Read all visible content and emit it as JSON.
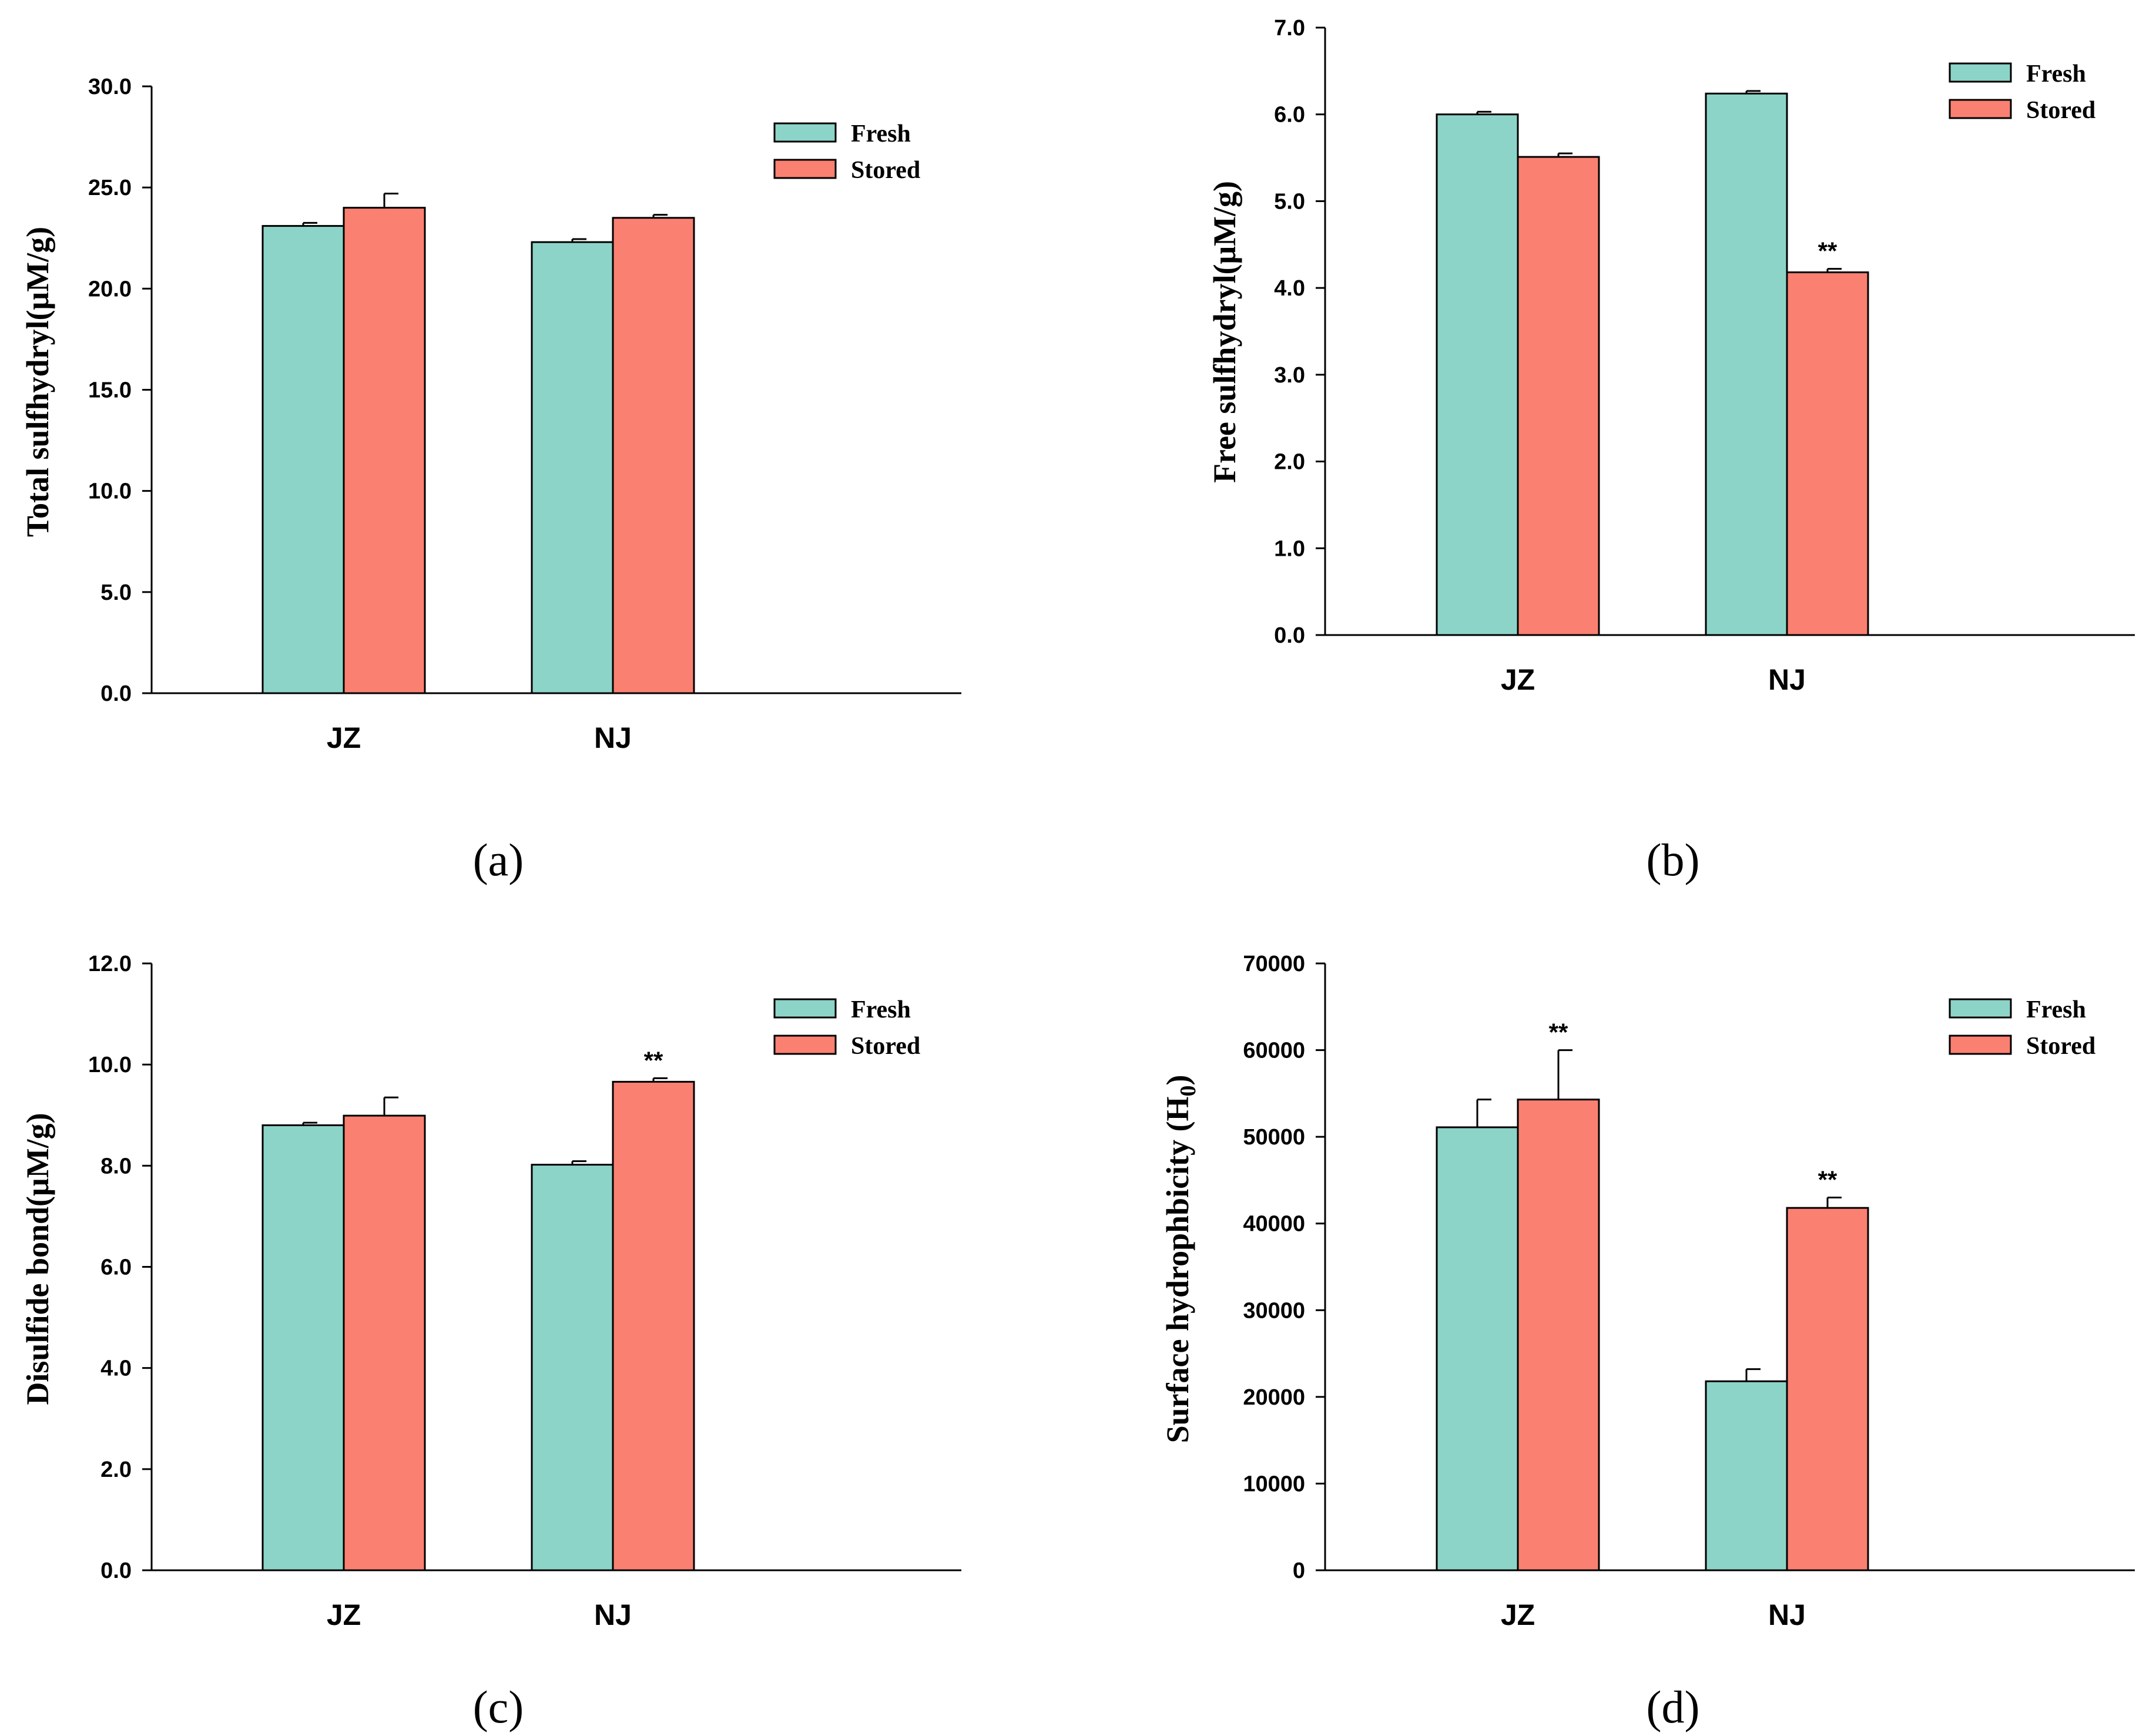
{
  "colors": {
    "fresh": "#8DD4C8",
    "stored": "#FA8072"
  },
  "chart_data": [
    {
      "type": "bar",
      "id": "a",
      "panel_label": "(a)",
      "ylabel": "Total sulfhydryl(μM/g)",
      "categories": [
        "JZ",
        "NJ"
      ],
      "ylim": [
        0,
        30
      ],
      "yticks": [
        "0.0",
        "5.0",
        "10.0",
        "15.0",
        "20.0",
        "25.0",
        "30.0"
      ],
      "legend": [
        "Fresh",
        "Stored"
      ],
      "legend_position": "top-right",
      "series": [
        {
          "name": "Fresh",
          "values": [
            23.1,
            22.3
          ],
          "errors": [
            0.15,
            0.15
          ],
          "sig": [
            "",
            ""
          ]
        },
        {
          "name": "Stored",
          "values": [
            24.0,
            23.5
          ],
          "errors": [
            0.7,
            0.15
          ],
          "sig": [
            "",
            ""
          ]
        }
      ]
    },
    {
      "type": "bar",
      "id": "b",
      "panel_label": "(b)",
      "ylabel": "Free sulfhydryl(μM/g)",
      "categories": [
        "JZ",
        "NJ"
      ],
      "ylim": [
        0,
        7
      ],
      "yticks": [
        "0.0",
        "1.0",
        "2.0",
        "3.0",
        "4.0",
        "5.0",
        "6.0",
        "7.0"
      ],
      "legend": [
        "Fresh",
        "Stored"
      ],
      "legend_position": "top-right",
      "series": [
        {
          "name": "Fresh",
          "values": [
            6.0,
            6.24
          ],
          "errors": [
            0.03,
            0.03
          ],
          "sig": [
            "",
            ""
          ]
        },
        {
          "name": "Stored",
          "values": [
            5.51,
            4.18
          ],
          "errors": [
            0.04,
            0.04
          ],
          "sig": [
            "",
            "**"
          ]
        }
      ]
    },
    {
      "type": "bar",
      "id": "c",
      "panel_label": "(c)",
      "ylabel": "Disulfide bond(μM/g)",
      "categories": [
        "JZ",
        "NJ"
      ],
      "ylim": [
        0,
        12
      ],
      "yticks": [
        "0.0",
        "2.0",
        "4.0",
        "6.0",
        "8.0",
        "10.0",
        "12.0"
      ],
      "legend": [
        "Fresh",
        "Stored"
      ],
      "legend_position": "top-right",
      "series": [
        {
          "name": "Fresh",
          "values": [
            8.8,
            8.02
          ],
          "errors": [
            0.05,
            0.07
          ],
          "sig": [
            "",
            ""
          ]
        },
        {
          "name": "Stored",
          "values": [
            8.99,
            9.66
          ],
          "errors": [
            0.36,
            0.07
          ],
          "sig": [
            "",
            "**"
          ]
        }
      ]
    },
    {
      "type": "bar",
      "id": "d",
      "panel_label": "(d)",
      "ylabel": "Surface hydrophbicity (H",
      "ylabel_subscript": "0",
      "ylabel_suffix": ")",
      "categories": [
        "JZ",
        "NJ"
      ],
      "ylim": [
        0,
        70000
      ],
      "yticks": [
        "0",
        "10000",
        "20000",
        "30000",
        "40000",
        "50000",
        "60000",
        "70000"
      ],
      "legend": [
        "Fresh",
        "Stored"
      ],
      "legend_position": "top-right",
      "series": [
        {
          "name": "Fresh",
          "values": [
            51100,
            21800
          ],
          "errors": [
            3200,
            1400
          ],
          "sig": [
            "",
            ""
          ]
        },
        {
          "name": "Stored",
          "values": [
            54300,
            41800
          ],
          "errors": [
            5700,
            1200
          ],
          "sig": [
            "**",
            "**"
          ]
        }
      ]
    }
  ]
}
